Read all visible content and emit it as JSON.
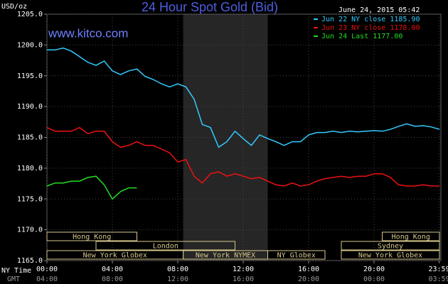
{
  "chart_data": {
    "type": "line",
    "title": "24 Hour Spot Gold (Bid)",
    "watermark": "www.kitco.com",
    "timestamp": "June 24, 2015 05:42",
    "y_unit": "USD/oz",
    "x_row_label": "NY Time",
    "x2_row_label": "GMT",
    "x": [
      0,
      0.5,
      1,
      1.5,
      2,
      2.5,
      3,
      3.5,
      4,
      4.5,
      5,
      5.5,
      6,
      6.5,
      7,
      7.5,
      8,
      8.5,
      9,
      9.5,
      10,
      10.5,
      11,
      11.5,
      12,
      12.5,
      13,
      13.5,
      14,
      14.5,
      15,
      15.5,
      16,
      16.5,
      17,
      17.5,
      18,
      18.5,
      19,
      19.5,
      20,
      20.5,
      21,
      21.5,
      22,
      22.5,
      23,
      23.5,
      24
    ],
    "series": [
      {
        "name": "Jun 22 NY close 1185.90",
        "color": "#33ccff",
        "values": [
          1199.2,
          1199.2,
          1199.5,
          1199.0,
          1198.1,
          1197.2,
          1196.7,
          1197.4,
          1195.8,
          1195.2,
          1195.8,
          1196.1,
          1194.9,
          1194.4,
          1193.7,
          1193.2,
          1193.7,
          1193.2,
          1191.2,
          1187.1,
          1186.6,
          1183.4,
          1184.3,
          1186.0,
          1184.8,
          1183.7,
          1185.4,
          1184.8,
          1184.3,
          1183.7,
          1184.3,
          1184.3,
          1185.4,
          1185.8,
          1185.8,
          1186.0,
          1185.8,
          1186.0,
          1185.9,
          1186.0,
          1186.1,
          1186.0,
          1186.3,
          1186.8,
          1187.2,
          1186.8,
          1186.9,
          1186.7,
          1186.3
        ]
      },
      {
        "name": "Jun 23 NY close 1178.00",
        "color": "#ee1111",
        "values": [
          1186.6,
          1186.0,
          1186.0,
          1186.0,
          1186.6,
          1185.6,
          1186.0,
          1186.0,
          1184.3,
          1183.4,
          1183.7,
          1184.3,
          1183.7,
          1183.7,
          1183.1,
          1182.5,
          1181.0,
          1181.4,
          1178.7,
          1177.6,
          1179.1,
          1179.4,
          1178.7,
          1179.1,
          1178.7,
          1178.3,
          1178.5,
          1177.9,
          1177.3,
          1177.1,
          1177.6,
          1177.1,
          1177.3,
          1177.9,
          1178.3,
          1178.5,
          1178.7,
          1178.5,
          1178.7,
          1178.7,
          1179.1,
          1179.1,
          1178.5,
          1177.3,
          1177.1,
          1177.1,
          1177.3,
          1177.1,
          1177.1
        ]
      },
      {
        "name": "Jun 24 Last 1177.00",
        "color": "#22dd22",
        "values": [
          1177.1,
          1177.6,
          1177.6,
          1177.9,
          1177.9,
          1178.5,
          1178.7,
          1177.3,
          1175.0,
          1176.2,
          1176.8,
          1176.8,
          null,
          null,
          null,
          null,
          null,
          null,
          null,
          null,
          null,
          null,
          null,
          null,
          null,
          null,
          null,
          null,
          null,
          null,
          null,
          null,
          null,
          null,
          null,
          null,
          null,
          null,
          null,
          null,
          null,
          null,
          null,
          null,
          null,
          null,
          null,
          null,
          null
        ]
      }
    ],
    "xlim": [
      0,
      24
    ],
    "xticks": [
      {
        "value": 0,
        "label": "00:00"
      },
      {
        "value": 4,
        "label": "04:00"
      },
      {
        "value": 8,
        "label": "08:00"
      },
      {
        "value": 12,
        "label": "12:00"
      },
      {
        "value": 16,
        "label": "16:00"
      },
      {
        "value": 20,
        "label": "20:00"
      },
      {
        "value": 23.98,
        "label": "23:59"
      }
    ],
    "x2tick_labels": [
      "04:00",
      "08:00",
      "12:00",
      "16:00",
      "20:00",
      "00:00",
      "03:59"
    ],
    "ylim": [
      1165,
      1205
    ],
    "yticks": [
      {
        "value": 1165,
        "label": "1165.0"
      },
      {
        "value": 1170,
        "label": "1170.0"
      },
      {
        "value": 1175,
        "label": "1175.0"
      },
      {
        "value": 1180,
        "label": "1180.0"
      },
      {
        "value": 1185,
        "label": "1185.0"
      },
      {
        "value": 1190,
        "label": "1190.0"
      },
      {
        "value": 1195,
        "label": "1195.0"
      },
      {
        "value": 1200,
        "label": "1200.0"
      },
      {
        "value": 1205,
        "label": "1205.0"
      }
    ],
    "grid": true,
    "highlight": [
      8.33,
      13.5
    ],
    "sessions": [
      {
        "label": "Hong Kong",
        "start": 0,
        "end": 5.5,
        "row": 0
      },
      {
        "label": "Hong Kong",
        "start": 20.5,
        "end": 24,
        "row": 0
      },
      {
        "label": "London",
        "start": 3,
        "end": 11.5,
        "row": 1
      },
      {
        "label": "Sydney",
        "start": 18,
        "end": 24,
        "row": 1
      },
      {
        "label": "New York Globex",
        "start": 0,
        "end": 8.33,
        "row": 2
      },
      {
        "label": "New York NYMEX",
        "start": 8.33,
        "end": 13.5,
        "row": 2
      },
      {
        "label": "NY Globex",
        "start": 13.5,
        "end": 17,
        "row": 2
      },
      {
        "label": "New York Globex",
        "start": 18,
        "end": 24,
        "row": 2
      }
    ]
  }
}
